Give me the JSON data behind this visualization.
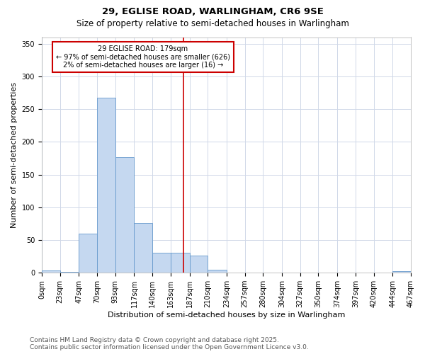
{
  "title": "29, EGLISE ROAD, WARLINGHAM, CR6 9SE",
  "subtitle": "Size of property relative to semi-detached houses in Warlingham",
  "xlabel": "Distribution of semi-detached houses by size in Warlingham",
  "ylabel": "Number of semi-detached properties",
  "property_label": "29 EGLISE ROAD: 179sqm",
  "pct_smaller": 97,
  "count_smaller": 626,
  "pct_larger": 2,
  "count_larger": 16,
  "bin_edges": [
    0,
    23,
    47,
    70,
    93,
    117,
    140,
    163,
    187,
    210,
    234,
    257,
    280,
    304,
    327,
    350,
    374,
    397,
    420,
    444,
    467
  ],
  "bin_counts": [
    4,
    1,
    60,
    268,
    177,
    76,
    31,
    31,
    26,
    5,
    0,
    0,
    0,
    0,
    0,
    0,
    0,
    0,
    0,
    2
  ],
  "bar_color": "#c5d8f0",
  "bar_edge_color": "#6699cc",
  "vline_color": "#cc0000",
  "vline_x": 179,
  "annotation_box_color": "#cc0000",
  "background_color": "#ffffff",
  "grid_color": "#d0d8e8",
  "ylim": [
    0,
    360
  ],
  "yticks": [
    0,
    50,
    100,
    150,
    200,
    250,
    300,
    350
  ],
  "tick_labels": [
    "0sqm",
    "23sqm",
    "47sqm",
    "70sqm",
    "93sqm",
    "117sqm",
    "140sqm",
    "163sqm",
    "187sqm",
    "210sqm",
    "234sqm",
    "257sqm",
    "280sqm",
    "304sqm",
    "327sqm",
    "350sqm",
    "374sqm",
    "397sqm",
    "420sqm",
    "444sqm",
    "467sqm"
  ],
  "footer_line1": "Contains HM Land Registry data © Crown copyright and database right 2025.",
  "footer_line2": "Contains public sector information licensed under the Open Government Licence v3.0.",
  "title_fontsize": 9.5,
  "subtitle_fontsize": 8.5,
  "axis_label_fontsize": 8,
  "tick_fontsize": 7,
  "ann_fontsize": 7,
  "footer_fontsize": 6.5
}
